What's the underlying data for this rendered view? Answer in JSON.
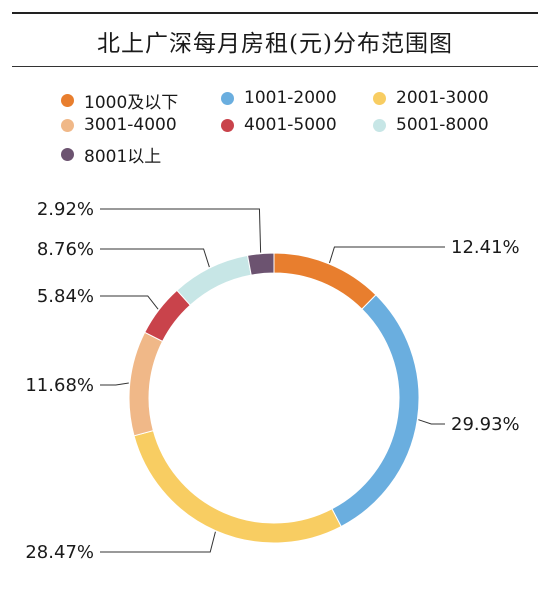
{
  "title": "北上广深每月房租(元)分布范围图",
  "chart_data": {
    "type": "pie",
    "variant": "donut",
    "title": "北上广深每月房租(元)分布范围图",
    "legend_position": "top",
    "categories": [
      "1000及以下",
      "1001-2000",
      "2001-3000",
      "3001-4000",
      "4001-5000",
      "5001-8000",
      "8001以上"
    ],
    "values": [
      12.41,
      29.93,
      28.47,
      11.68,
      5.84,
      8.76,
      2.92
    ],
    "labels": [
      "12.41%",
      "29.93%",
      "28.47%",
      "11.68%",
      "5.84%",
      "8.76%",
      "2.92%"
    ],
    "colors": [
      "#e87e2e",
      "#6aaedf",
      "#f8cd62",
      "#f0b888",
      "#c9434b",
      "#c7e6e6",
      "#6c5370"
    ]
  }
}
